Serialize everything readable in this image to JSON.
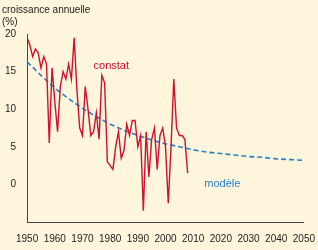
{
  "chart_data": {
    "type": "line",
    "y_label": [
      "croissance annuelle",
      "(%)"
    ],
    "xlim": [
      1950,
      2050
    ],
    "xticks": [
      1950,
      1960,
      1970,
      1980,
      1990,
      2000,
      2010,
      2020,
      2030,
      2040,
      2050
    ],
    "ylim": [
      -5,
      20
    ],
    "yticks": [
      0,
      5,
      10,
      15,
      20
    ],
    "grid": false,
    "series": [
      {
        "name": "constat",
        "color": "#d0102c",
        "line_style": "solid",
        "x": [
          1950,
          1951,
          1952,
          1953,
          1954,
          1955,
          1956,
          1957,
          1958,
          1959,
          1960,
          1961,
          1962,
          1963,
          1964,
          1965,
          1966,
          1967,
          1968,
          1969,
          1970,
          1971,
          1972,
          1973,
          1974,
          1975,
          1976,
          1977,
          1978,
          1979,
          1980,
          1981,
          1982,
          1983,
          1984,
          1985,
          1986,
          1987,
          1988,
          1989,
          1990,
          1991,
          1992,
          1993,
          1994,
          1995,
          1996,
          1997,
          1998,
          1999,
          2000,
          2001,
          2002,
          2003,
          2004,
          2005,
          2006,
          2007,
          2008
        ],
        "values": [
          19.5,
          18.5,
          17,
          18,
          17.5,
          15.5,
          17,
          16,
          5.5,
          15.5,
          11,
          7,
          13,
          15,
          14,
          16,
          14,
          19.5,
          12.5,
          7.5,
          6.5,
          13,
          10,
          6.5,
          7,
          9.5,
          6,
          14.5,
          13.5,
          3,
          2.5,
          2,
          5,
          7,
          3.5,
          4.5,
          8,
          6.5,
          8.5,
          8.5,
          5,
          6.5,
          -3.5,
          7,
          1,
          6,
          7.5,
          2,
          6.5,
          7.5,
          5,
          -2.5,
          5,
          14,
          7.5,
          6.5,
          6.5,
          6,
          1.5
        ]
      },
      {
        "name": "modèle",
        "color": "#2a7fc1",
        "line_style": "dashed",
        "x": [
          1950,
          1955,
          1960,
          1965,
          1970,
          1975,
          1980,
          1985,
          1990,
          1995,
          2000,
          2005,
          2010,
          2015,
          2020,
          2025,
          2030,
          2035,
          2040,
          2045,
          2050
        ],
        "values": [
          16.3,
          14.5,
          12.8,
          11.4,
          10.1,
          9.0,
          8.0,
          7.2,
          6.5,
          5.9,
          5.4,
          5.0,
          4.6,
          4.3,
          4.1,
          3.9,
          3.7,
          3.6,
          3.4,
          3.3,
          3.2
        ]
      }
    ]
  }
}
